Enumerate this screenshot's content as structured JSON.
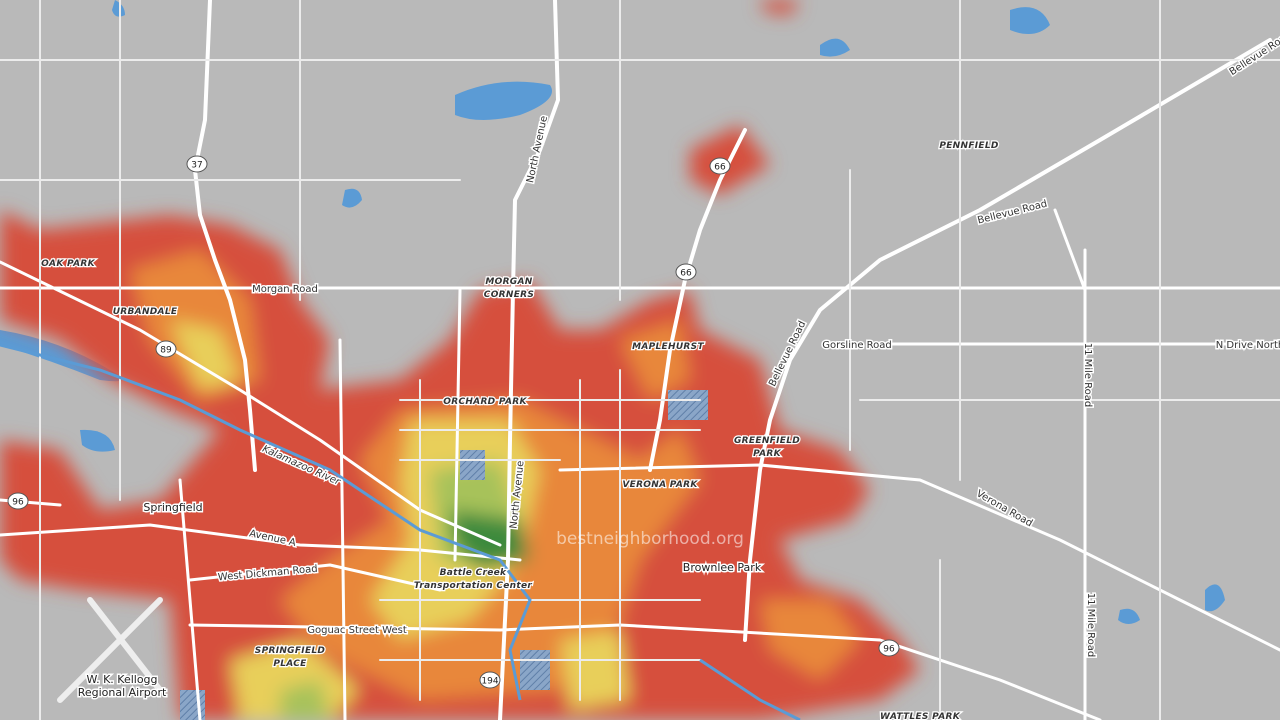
{
  "map": {
    "places": [
      {
        "lines": [
          "OAK PARK"
        ]
      },
      {
        "lines": [
          "URBANDALE"
        ]
      },
      {
        "lines": [
          "MORGAN",
          "CORNERS"
        ]
      },
      {
        "lines": [
          "ORCHARD PARK"
        ]
      },
      {
        "lines": [
          "MAPLEHURST"
        ]
      },
      {
        "lines": [
          "PENNFIELD"
        ]
      },
      {
        "lines": [
          "GREENFIELD",
          "PARK"
        ]
      },
      {
        "lines": [
          "VERONA PARK"
        ]
      },
      {
        "lines": [
          "Springfield"
        ]
      },
      {
        "lines": [
          "Brownlee Park"
        ]
      },
      {
        "lines": [
          "SPRINGFIELD",
          "PLACE"
        ]
      },
      {
        "lines": [
          "W. K. Kellogg",
          "Regional Airport"
        ]
      },
      {
        "lines": [
          "Battle Creek",
          "Transportation Center"
        ]
      },
      {
        "lines": [
          "WATTLES PARK"
        ]
      }
    ],
    "roads": [
      "Morgan Road",
      "North Avenue",
      "North Avenue",
      "Bellevue Road",
      "Bellevue Road",
      "Bellevue Road",
      "Gorsline Road",
      "N Drive North",
      "11 Mile Road",
      "11 Mile Road",
      "Verona Road",
      "Kalamazoo River",
      "Avenue A",
      "West Dickman Road",
      "Goguac Street West"
    ],
    "shields": [
      "37",
      "66",
      "66",
      "89",
      "96",
      "96",
      "194"
    ],
    "watermark": "bestneighborhood.org"
  }
}
